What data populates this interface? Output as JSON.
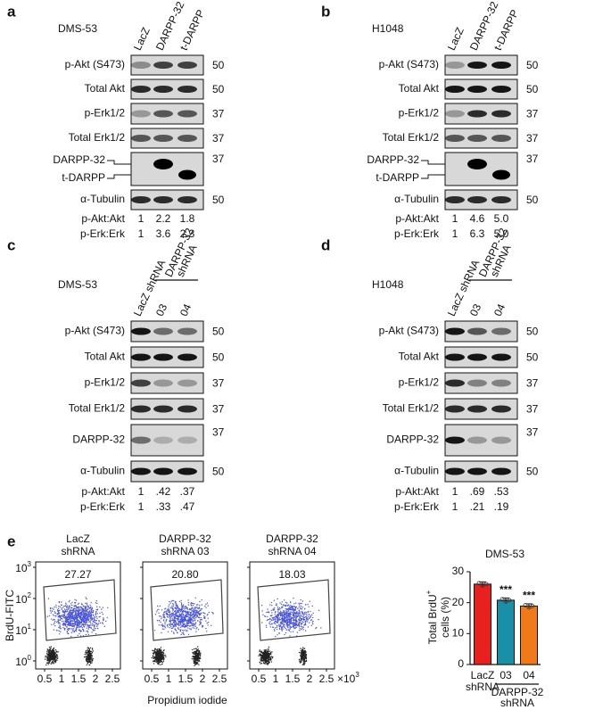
{
  "panels": [
    {
      "letter": "a",
      "cell_line": "DMS-53",
      "lanes": [
        "LacZ",
        "DARPP-32",
        "t-DARPP"
      ],
      "rows": [
        {
          "label": "p-Akt (S473)",
          "mw": "50"
        },
        {
          "label": "Total Akt",
          "mw": "50"
        },
        {
          "label": "p-Erk1/2",
          "mw": "37"
        },
        {
          "label": "Total Erk1/2",
          "mw": "37"
        },
        {
          "labels": [
            "DARPP-32",
            "t-DARPP"
          ],
          "mw": "37"
        },
        {
          "label": "α-Tubulin",
          "mw": "50"
        }
      ],
      "ratios": [
        {
          "label": "p-Akt:Akt",
          "values": [
            "1",
            "2.2",
            "1.8"
          ]
        },
        {
          "label": "p-Erk:Erk",
          "values": [
            "1",
            "3.6",
            "2.3"
          ]
        }
      ]
    },
    {
      "letter": "b",
      "cell_line": "H1048",
      "lanes": [
        "LacZ",
        "DARPP-32",
        "t-DARPP"
      ],
      "rows": [
        {
          "label": "p-Akt (S473)",
          "mw": "50"
        },
        {
          "label": "Total Akt",
          "mw": "50"
        },
        {
          "label": "p-Erk1/2",
          "mw": "37"
        },
        {
          "label": "Total Erk1/2",
          "mw": "37"
        },
        {
          "labels": [
            "DARPP-32",
            "t-DARPP"
          ],
          "mw": "37"
        },
        {
          "label": "α-Tubulin",
          "mw": "50"
        }
      ],
      "ratios": [
        {
          "label": "p-Akt:Akt",
          "values": [
            "1",
            "4.6",
            "5.0"
          ]
        },
        {
          "label": "p-Erk:Erk",
          "values": [
            "1",
            "6.3",
            "5.0"
          ]
        }
      ]
    },
    {
      "letter": "c",
      "cell_line": "DMS-53",
      "lanes": [
        "LacZ shRNA",
        "03",
        "04"
      ],
      "lane_group": [
        "DARPP-32",
        "shRNA"
      ],
      "rows": [
        {
          "label": "p-Akt (S473)",
          "mw": "50"
        },
        {
          "label": "Total Akt",
          "mw": "50"
        },
        {
          "label": "p-Erk1/2",
          "mw": "37"
        },
        {
          "label": "Total Erk1/2",
          "mw": "37"
        },
        {
          "label": "DARPP-32",
          "mw": "37"
        },
        {
          "label": "α-Tubulin",
          "mw": "50"
        }
      ],
      "ratios": [
        {
          "label": "p-Akt:Akt",
          "values": [
            "1",
            ".42",
            ".37"
          ]
        },
        {
          "label": "p-Erk:Erk",
          "values": [
            "1",
            ".33",
            ".47"
          ]
        }
      ]
    },
    {
      "letter": "d",
      "cell_line": "H1048",
      "lanes": [
        "LacZ shRNA",
        "03",
        "04"
      ],
      "lane_group": [
        "DARPP-32",
        "shRNA"
      ],
      "rows": [
        {
          "label": "p-Akt (S473)",
          "mw": "50"
        },
        {
          "label": "Total Akt",
          "mw": "50"
        },
        {
          "label": "p-Erk1/2",
          "mw": "37"
        },
        {
          "label": "Total Erk1/2",
          "mw": "37"
        },
        {
          "label": "DARPP-32",
          "mw": "37"
        },
        {
          "label": "α-Tubulin",
          "mw": "50"
        }
      ],
      "ratios": [
        {
          "label": "p-Akt:Akt",
          "values": [
            "1",
            ".69",
            ".53"
          ]
        },
        {
          "label": "p-Erk:Erk",
          "values": [
            "1",
            ".21",
            ".19"
          ]
        }
      ]
    }
  ],
  "panel_e": {
    "letter": "e",
    "y_label": "BrdU-FITC",
    "x_label": "Propidium iodide",
    "flow_yticks": [
      {
        "base": "10",
        "exp": "3"
      },
      {
        "base": "10",
        "exp": "2"
      },
      {
        "base": "10",
        "exp": "1"
      },
      {
        "base": "10",
        "exp": "0"
      }
    ],
    "flow_xticks": [
      "0.5",
      "1",
      "1.5",
      "2",
      "2.5"
    ],
    "x_multiplier": {
      "base": "×10",
      "exp": "3"
    },
    "flow_plots": [
      {
        "title": [
          "LacZ",
          "shRNA"
        ],
        "gate_percent": "27.27"
      },
      {
        "title": [
          "DARPP-32",
          "shRNA 03"
        ],
        "gate_percent": "20.80"
      },
      {
        "title": [
          "DARPP-32",
          "shRNA 04"
        ],
        "gate_percent": "18.03"
      }
    ],
    "bar_chart": {
      "type": "bar",
      "title": "DMS-53",
      "y_label": [
        "Total BrdU",
        "cells (%)"
      ],
      "y_label_sup": "+",
      "categories": [
        [
          "LacZ",
          "shRNA"
        ],
        "03",
        "04"
      ],
      "category_group": [
        "DARPP-32",
        "shRNA"
      ],
      "values": [
        26,
        20.8,
        18.9
      ],
      "colors": [
        "#e8201e",
        "#1a8fa8",
        "#f07a1a"
      ],
      "ylim": [
        0,
        30
      ],
      "yticks": [
        0,
        10,
        20,
        30
      ],
      "significance": [
        null,
        "***",
        "***"
      ]
    }
  }
}
